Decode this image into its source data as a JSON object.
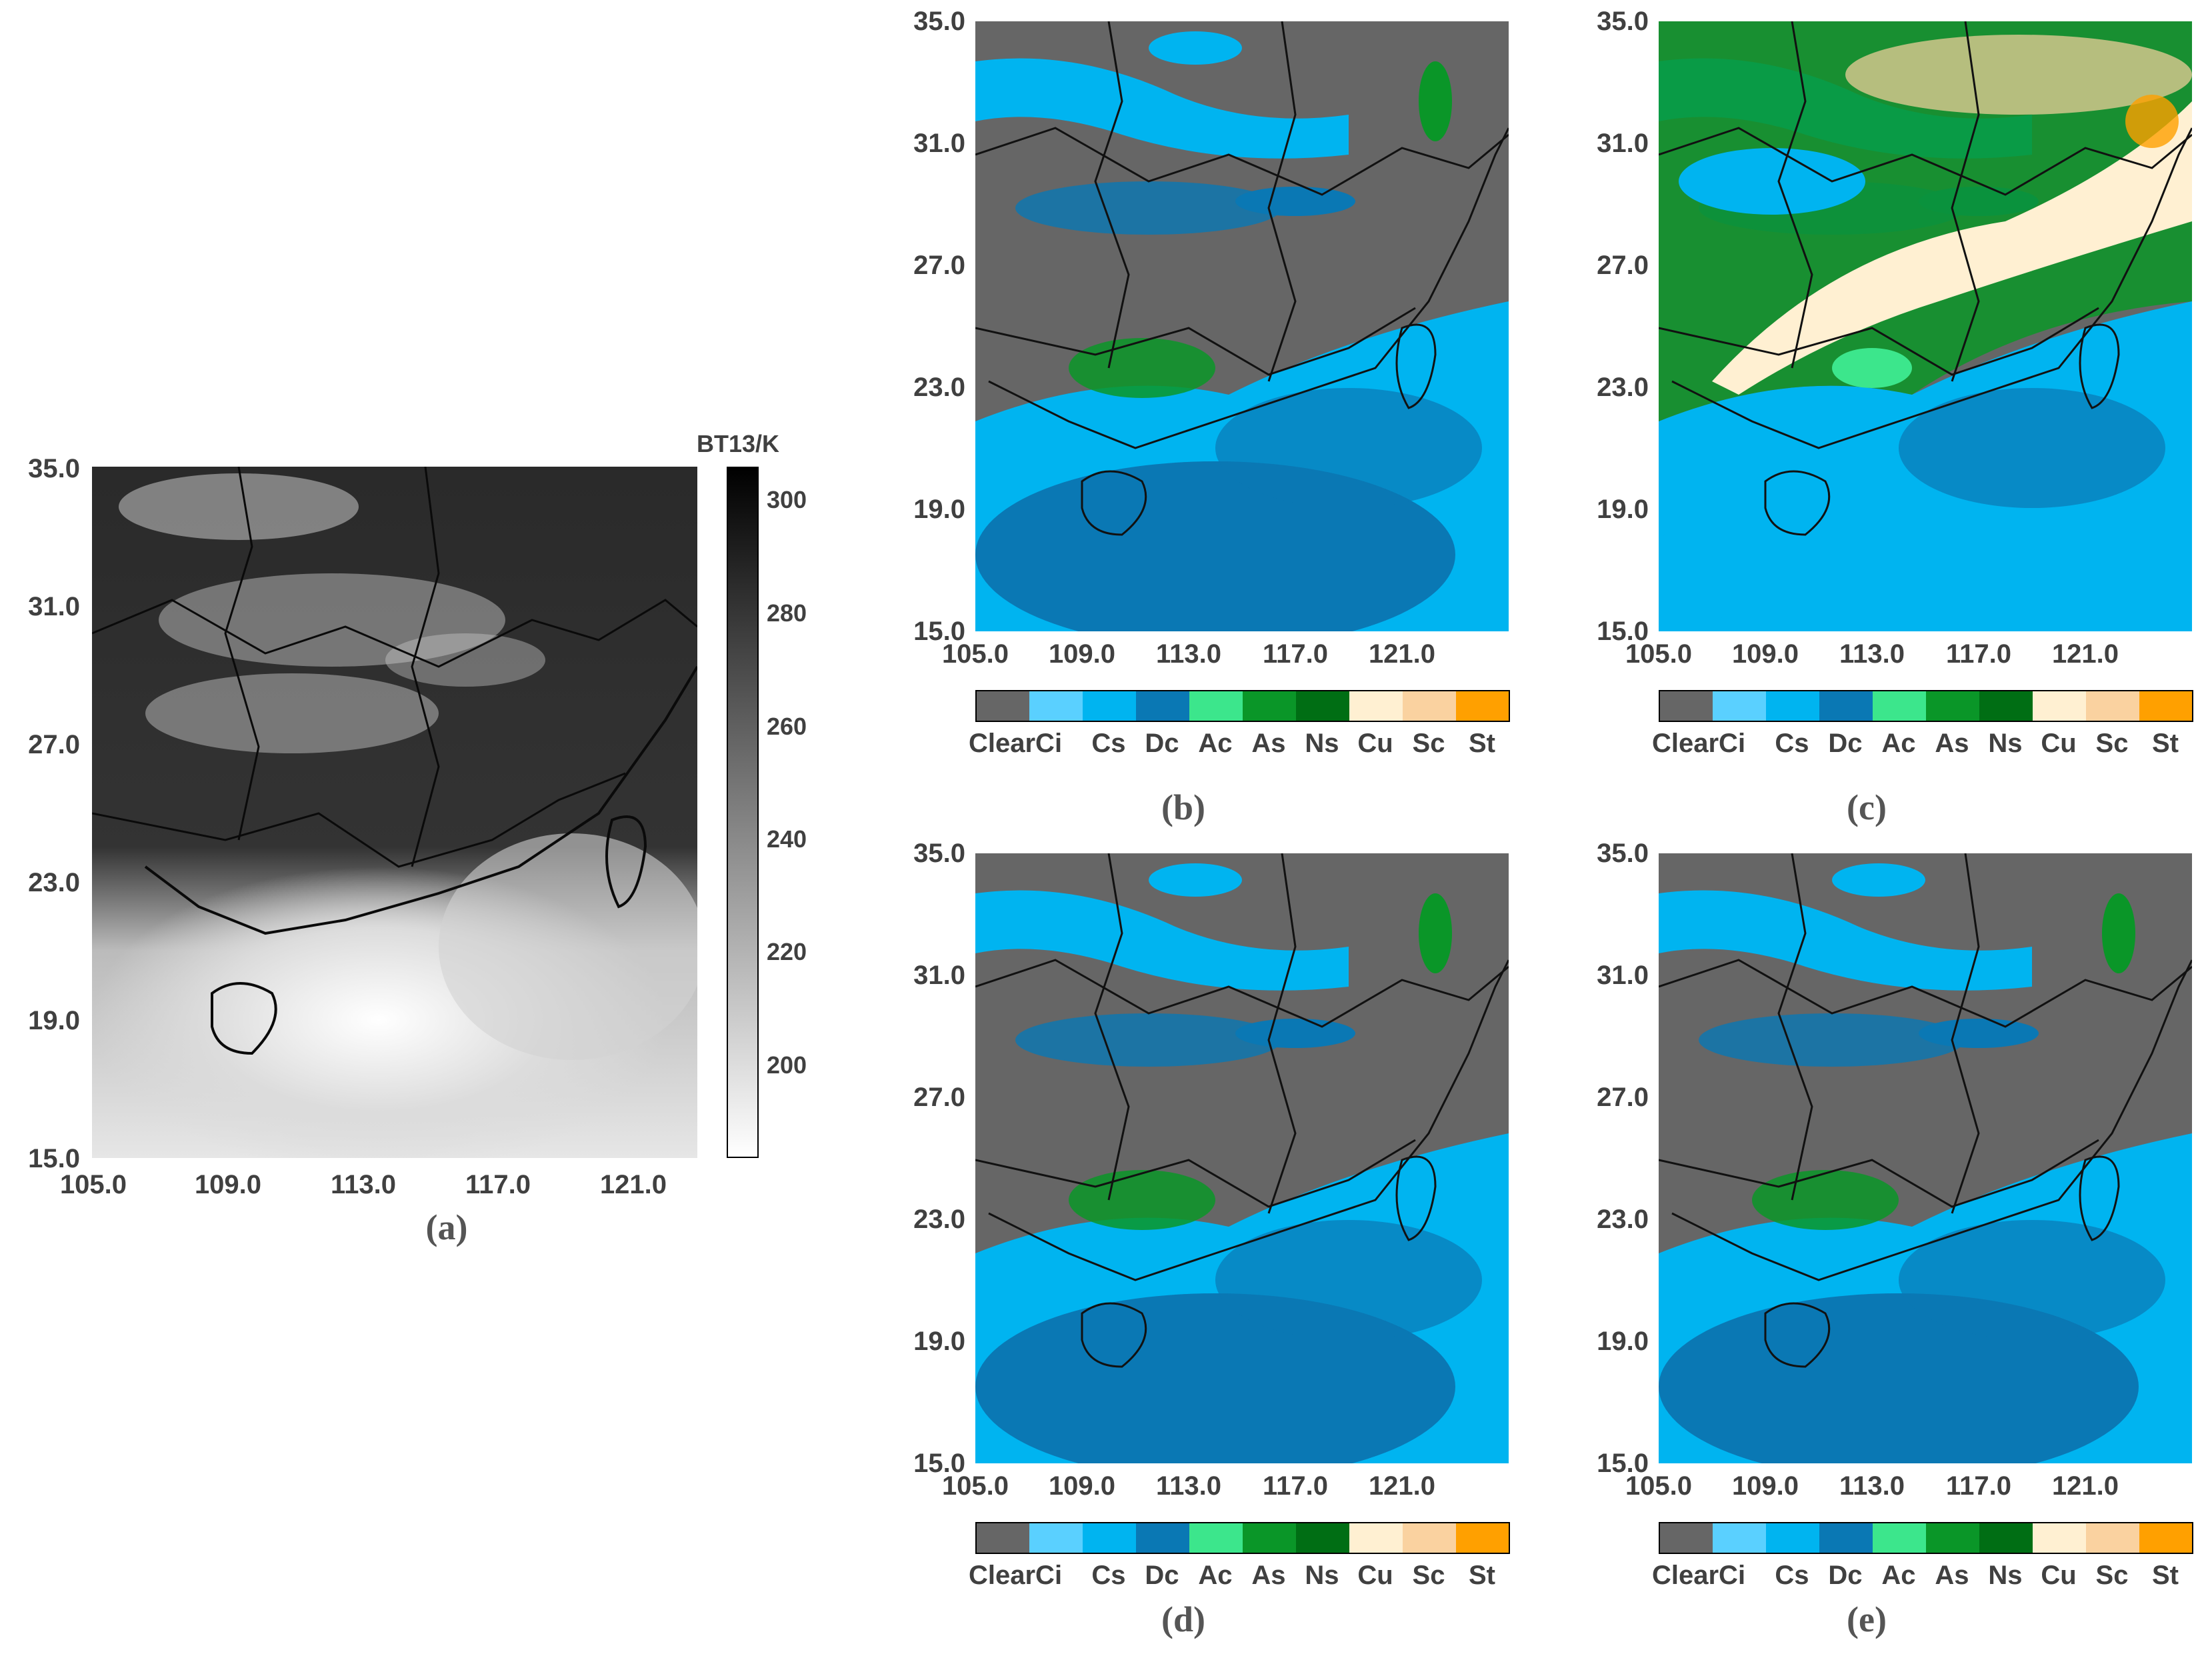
{
  "panels": {
    "a": {
      "label": "(a)",
      "colorbar_title": "BT13/K",
      "colorbar_ticks": [
        "300",
        "280",
        "260",
        "240",
        "220",
        "200"
      ]
    },
    "b": {
      "label": "(b)"
    },
    "c": {
      "label": "(c)"
    },
    "d": {
      "label": "(d)"
    },
    "e": {
      "label": "(e)"
    }
  },
  "axes": {
    "lat_ticks": [
      "35.0",
      "31.0",
      "27.0",
      "23.0",
      "19.0",
      "15.0"
    ],
    "lon_ticks": [
      "105.0",
      "109.0",
      "113.0",
      "117.0",
      "121.0"
    ]
  },
  "cloud_classes": [
    {
      "name": "Clear",
      "color": "#666666"
    },
    {
      "name": "Ci",
      "color": "#5ad0ff"
    },
    {
      "name": "Cs",
      "color": "#00b4f0"
    },
    {
      "name": "Dc",
      "color": "#0a78b4"
    },
    {
      "name": "Ac",
      "color": "#3ce68c"
    },
    {
      "name": "As",
      "color": "#0a9628"
    },
    {
      "name": "Ns",
      "color": "#006e14"
    },
    {
      "name": "Cu",
      "color": "#fff0d2"
    },
    {
      "name": "Sc",
      "color": "#fad2a0"
    },
    {
      "name": "St",
      "color": "#ffa000"
    }
  ],
  "colorbar_labels": {
    "combined_first": "ClearCi",
    "rest": [
      "Cs",
      "Dc",
      "Ac",
      "As",
      "Ns",
      "Cu",
      "Sc",
      "St"
    ]
  }
}
